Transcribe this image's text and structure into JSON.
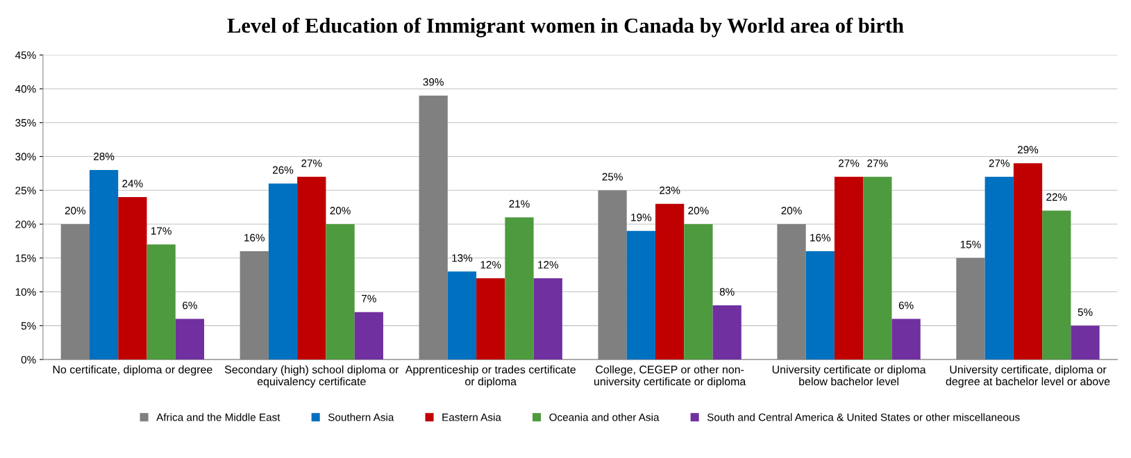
{
  "chart_data": {
    "type": "bar",
    "title": "Level of Education of Immigrant women in Canada by World area of birth",
    "categories": [
      "No certificate, diploma or degree",
      "Secondary (high) school diploma or\nequivalency certificate",
      "Apprenticeship or trades certificate\nor diploma",
      "College, CEGEP or other non-\nuniversity certificate or diploma",
      "University certificate or diploma\nbelow bachelor level",
      "University certificate, diploma or\ndegree at bachelor level or above"
    ],
    "series": [
      {
        "name": "Africa and the Middle East",
        "color": "#808080",
        "values": [
          20,
          16,
          39,
          25,
          20,
          15
        ],
        "value_labels": [
          "20%",
          "16%",
          "39%",
          "25%",
          "20%",
          "15%"
        ]
      },
      {
        "name": "Southern Asia",
        "color": "#0070c0",
        "values": [
          28,
          26,
          13,
          19,
          16,
          27
        ],
        "value_labels": [
          "28%",
          "26%",
          "13%",
          "19%",
          "16%",
          "27%"
        ]
      },
      {
        "name": "Eastern Asia",
        "color": "#c00000",
        "values": [
          24,
          27,
          12,
          23,
          27,
          29
        ],
        "value_labels": [
          "24%",
          "27%",
          "12%",
          "23%",
          "27%",
          "29%"
        ]
      },
      {
        "name": "Oceania and other Asia",
        "color": "#4e9a3e",
        "values": [
          17,
          20,
          21,
          20,
          27,
          22
        ],
        "value_labels": [
          "17%",
          "20%",
          "21%",
          "20%",
          "27%",
          "22%"
        ]
      },
      {
        "name": "South and Central America & United States or other miscellaneous",
        "color": "#7030a0",
        "values": [
          6,
          7,
          12,
          8,
          6,
          5
        ],
        "value_labels": [
          "6%",
          "7%",
          "12%",
          "8%",
          "6%",
          "5%"
        ]
      }
    ],
    "ylim": [
      0,
      45
    ],
    "yticks": [
      {
        "value": 0,
        "label": "0%"
      },
      {
        "value": 5,
        "label": "5%"
      },
      {
        "value": 10,
        "label": "10%"
      },
      {
        "value": 15,
        "label": "15%"
      },
      {
        "value": 20,
        "label": "20%"
      },
      {
        "value": 25,
        "label": "25%"
      },
      {
        "value": 30,
        "label": "30%"
      },
      {
        "value": 35,
        "label": "35%"
      },
      {
        "value": 40,
        "label": "40%"
      },
      {
        "value": 45,
        "label": "45%"
      }
    ],
    "grid": "y",
    "legend": "bottom"
  }
}
